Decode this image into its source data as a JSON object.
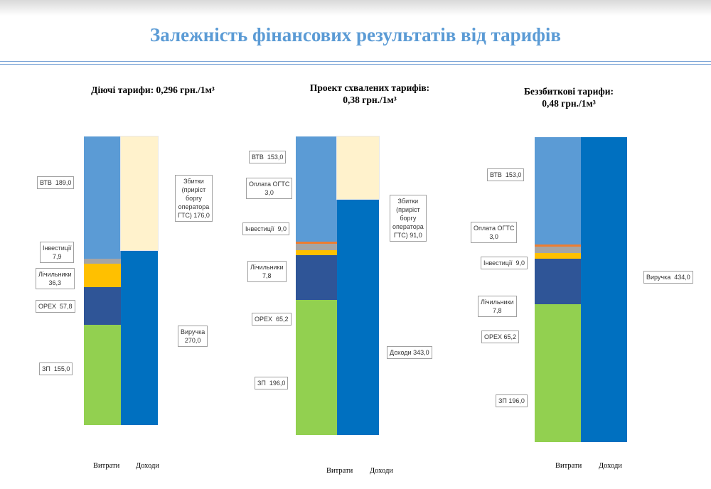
{
  "title": "Залежність фінансових результатів від тарифів",
  "colors": {
    "title": "#5b9bd5",
    "vtb": "#5b9bd5",
    "ogts": "#ed7d31",
    "invest": "#a5a5a5",
    "meters": "#ffc000",
    "opex": "#2f5597",
    "salary": "#92d050",
    "revenue": "#0070c0",
    "loss": "#fff2cc"
  },
  "chart_data": [
    {
      "type": "stacked-bar",
      "title": "Діючі тарифи:   0,296 грн./1м³",
      "categories": [
        "Витрати",
        "Доходи"
      ],
      "series_costs": [
        {
          "key": "salary",
          "label": "ЗП  155,0",
          "value": 155.0
        },
        {
          "key": "opex",
          "label": "OPEX  57,8",
          "value": 57.8
        },
        {
          "key": "meters",
          "label": "Лічильники\n36,3",
          "value": 36.3
        },
        {
          "key": "invest",
          "label": "Інвестиції\n7,9",
          "value": 7.9
        },
        {
          "key": "vtb",
          "label": "ВТВ  189,0",
          "value": 189.0
        }
      ],
      "series_income": [
        {
          "key": "revenue",
          "label": "Виручка\n270,0",
          "value": 270.0
        },
        {
          "key": "loss",
          "label": "Збитки\n(приріст\nборгу\nоператора\nГТС) 176,0",
          "value": 176.0
        }
      ]
    },
    {
      "type": "stacked-bar",
      "title": "Проект схвалених тарифів:\n0,38 грн./1м³",
      "categories": [
        "Витрати",
        "Доходи"
      ],
      "series_costs": [
        {
          "key": "salary",
          "label": "ЗП  196,0",
          "value": 196.0
        },
        {
          "key": "opex",
          "label": "OPEX  65,2",
          "value": 65.2
        },
        {
          "key": "meters",
          "label": "Лічильники\n7,8",
          "value": 7.8
        },
        {
          "key": "invest",
          "label": "Інвестиції  9,0",
          "value": 9.0
        },
        {
          "key": "ogts",
          "label": "Оплата ОГТС\n3,0",
          "value": 3.0
        },
        {
          "key": "vtb",
          "label": "ВТВ  153,0",
          "value": 153.0
        }
      ],
      "series_income": [
        {
          "key": "revenue",
          "label": "Доходи 343,0",
          "value": 343.0
        },
        {
          "key": "loss",
          "label": "Збитки\n(приріст\nборгу\nоператора\nГТС) 91,0",
          "value": 91.0
        }
      ]
    },
    {
      "type": "stacked-bar",
      "title": "Беззбиткові тарифи:\n0,48 грн./1м³",
      "categories": [
        "Витрати",
        "Доходи"
      ],
      "series_costs": [
        {
          "key": "salary",
          "label": "ЗП 196,0",
          "value": 196.0
        },
        {
          "key": "opex",
          "label": "OPEX 65,2",
          "value": 65.2
        },
        {
          "key": "meters",
          "label": "Лічильники\n7,8",
          "value": 7.8
        },
        {
          "key": "invest",
          "label": "Інвестиції  9,0",
          "value": 9.0
        },
        {
          "key": "ogts",
          "label": "Оплата ОГТС\n3,0",
          "value": 3.0
        },
        {
          "key": "vtb",
          "label": "ВТВ  153,0",
          "value": 153.0
        }
      ],
      "series_income": [
        {
          "key": "revenue",
          "label": "Виручка  434,0",
          "value": 434.0
        }
      ]
    }
  ]
}
